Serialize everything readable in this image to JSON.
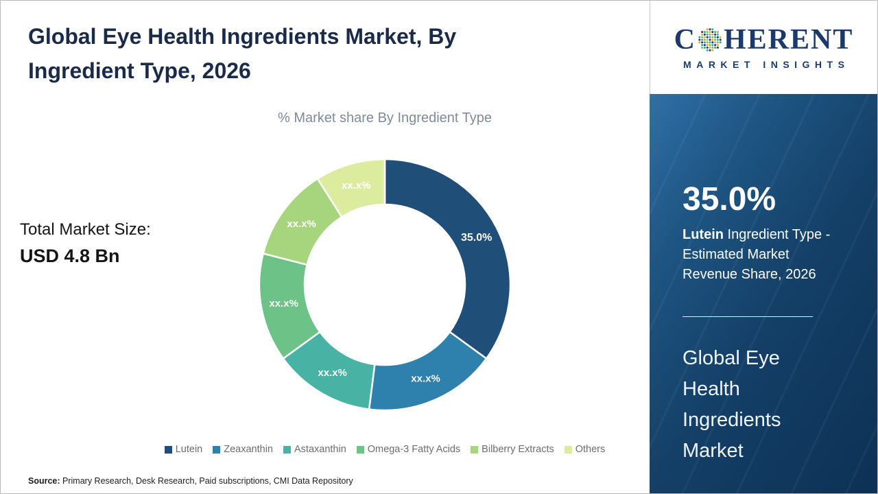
{
  "page": {
    "title": "Global Eye Health Ingredients Market, By Ingredient Type, 2026",
    "source_label": "Source:",
    "source_text": " Primary Research, Desk Research, Paid subscriptions, CMI Data Repository"
  },
  "main": {
    "total_market_label": "Total Market Size:",
    "total_market_value": "USD 4.8 Bn"
  },
  "chart_data": {
    "type": "pie",
    "variant": "donut",
    "title": "% Market share By Ingredient Type",
    "categories": [
      "Lutein",
      "Zeaxanthin",
      "Astaxanthin",
      "Omega-3 Fatty Acids",
      "Bilberry Extracts",
      "Others"
    ],
    "values": [
      35.0,
      17.0,
      13.0,
      14.0,
      12.0,
      9.0
    ],
    "slice_labels": [
      "35.0%",
      "xx.x%",
      "xx.x%",
      "xx.x%",
      "xx.x%",
      "xx.x%"
    ],
    "colors": [
      "#1f4e79",
      "#2e80ad",
      "#48b2a4",
      "#6cc287",
      "#a6d57d",
      "#dcec9f"
    ],
    "start_angle_deg": 0,
    "direction": "clockwise",
    "legend_position": "bottom",
    "label_color": "#ffffff"
  },
  "sidebar": {
    "logo": {
      "brand_first": "C",
      "brand_rest": "HERENT",
      "subtitle": "MARKET INSIGHTS",
      "brand_color": "#1b3a6b",
      "dot_colors": [
        "#1b3a6b",
        "#2fa8a0",
        "#7ac143",
        "#e8a33d"
      ]
    },
    "stat_value": "35.0%",
    "stat_bold": "Lutein",
    "stat_rest": " Ingredient Type - Estimated Market Revenue Share, 2026",
    "panel_title": "Global Eye Health Ingredients Market",
    "panel_color_top": "#306fa7",
    "panel_color_bottom": "#0d3154"
  }
}
